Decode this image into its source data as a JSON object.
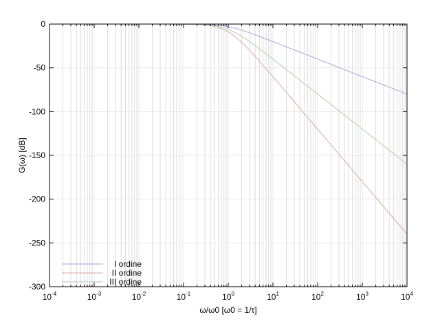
{
  "chart_data": {
    "type": "line",
    "title": "",
    "xlabel": "ω/ω0 [ω0 = 1/τ]",
    "ylabel": "G(ω) [dB]",
    "xscale": "log",
    "xlim": [
      0.0001,
      10000
    ],
    "ylim": [
      -300,
      0
    ],
    "grid": true,
    "legend_position": "bottom-left",
    "x_ticks": [
      {
        "base": "10",
        "exp": "-4"
      },
      {
        "base": "10",
        "exp": "-3"
      },
      {
        "base": "10",
        "exp": "-2"
      },
      {
        "base": "10",
        "exp": "-1"
      },
      {
        "base": "10",
        "exp": "0"
      },
      {
        "base": "10",
        "exp": "1"
      },
      {
        "base": "10",
        "exp": "2"
      },
      {
        "base": "10",
        "exp": "3"
      },
      {
        "base": "10",
        "exp": "4"
      }
    ],
    "y_ticks": [
      "0",
      "-50",
      "-100",
      "-150",
      "-200",
      "-250",
      "-300"
    ],
    "series": [
      {
        "name": "I ordine",
        "color": "#a6a6df",
        "order": 1,
        "x": [
          0.0001,
          0.01,
          0.1,
          0.3,
          1,
          3,
          10,
          100,
          1000,
          10000
        ],
        "y": [
          0,
          0,
          -0.04,
          -0.37,
          -3,
          -10,
          -20,
          -40,
          -60,
          -80
        ]
      },
      {
        "name": "II ordine",
        "color": "#d9a6a6",
        "order": 3,
        "x": [
          0.0001,
          0.01,
          0.1,
          0.3,
          1,
          3,
          10,
          100,
          1000,
          10000
        ],
        "y": [
          0,
          0,
          -0.13,
          -1.1,
          -9,
          -30,
          -60,
          -120,
          -180,
          -240
        ]
      },
      {
        "name": "III ordine",
        "color": "#b0c8b0",
        "order": 2,
        "x": [
          0.0001,
          0.01,
          0.1,
          0.3,
          1,
          3,
          10,
          100,
          1000,
          10000
        ],
        "y": [
          0,
          0,
          -0.09,
          -0.75,
          -6,
          -20,
          -40,
          -80,
          -120,
          -160
        ]
      }
    ],
    "colors": {
      "grid": "#e8e8e8",
      "minor_grid": "#dcdcdc",
      "axis": "#000000"
    }
  }
}
